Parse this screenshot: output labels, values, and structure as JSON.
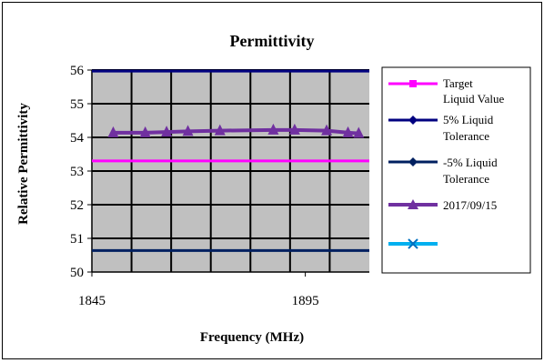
{
  "chart_data": {
    "type": "line",
    "title": "Permittivity",
    "xlabel": "Frequency (MHz)",
    "ylabel": "Relative Permittivity",
    "xlim": [
      1845,
      1910
    ],
    "ylim": [
      50,
      56
    ],
    "x_ticks": [
      1845,
      1895
    ],
    "y_ticks": [
      50,
      51,
      52,
      53,
      54,
      55,
      56
    ],
    "grid": true,
    "plot_background": "#c0c0c0",
    "legend_position": "right",
    "series": [
      {
        "name": "Target Liquid Value",
        "color": "#ff00ff",
        "marker": "square",
        "x": [
          1845,
          1910
        ],
        "y": [
          53.3,
          53.3
        ]
      },
      {
        "name": "5% Liquid Tolerance",
        "color": "#000080",
        "marker": "diamond",
        "x": [
          1845,
          1910
        ],
        "y": [
          55.97,
          55.97
        ]
      },
      {
        "name": "-5% Liquid Tolerance",
        "color": "#002060",
        "marker": "diamond",
        "x": [
          1845,
          1910
        ],
        "y": [
          50.64,
          50.64
        ]
      },
      {
        "name": "2017/09/15",
        "color": "#7030a0",
        "marker": "triangle",
        "x": [
          1850,
          1857.5,
          1862.5,
          1867.5,
          1875,
          1887.5,
          1892.5,
          1900,
          1905,
          1907.5
        ],
        "y": [
          54.14,
          54.14,
          54.16,
          54.18,
          54.2,
          54.22,
          54.22,
          54.2,
          54.14,
          54.12
        ]
      },
      {
        "name": "",
        "color": "#00b0f0",
        "marker": "x",
        "x": [],
        "y": []
      }
    ]
  },
  "legend_labels": {
    "target_line1": "Target",
    "target_line2": "Liquid Value",
    "plus5_line1": "5% Liquid",
    "plus5_line2": "Tolerance",
    "minus5_line1": "-5% Liquid",
    "minus5_line2": "Tolerance",
    "measured": "2017/09/15"
  }
}
